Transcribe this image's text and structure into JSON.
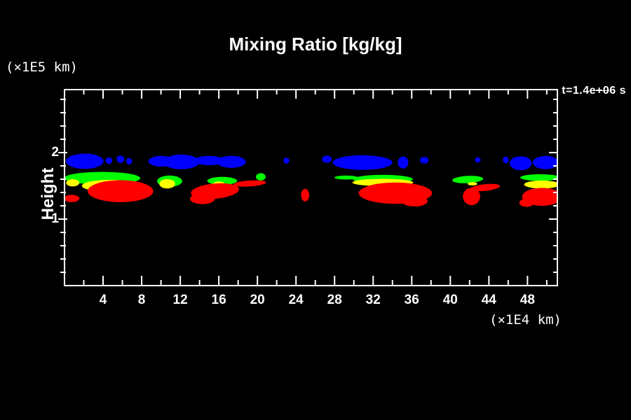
{
  "title": "Mixing Ratio [kg/kg]",
  "timestamp": {
    "prefix": "t=1.4",
    "struck": "e+0",
    "suffix": "6 s"
  },
  "y_axis": {
    "label": "Height",
    "unit_label": "(×1E5 km)",
    "range": [
      0,
      2.947
    ],
    "major_ticks": [
      1,
      2
    ],
    "major_tick_labels": [
      "1",
      "2"
    ],
    "minor_ticks": [
      0.2,
      0.4,
      0.6,
      0.8,
      1.2,
      1.4,
      1.6,
      1.8,
      2.2,
      2.4,
      2.6,
      2.8
    ]
  },
  "x_axis": {
    "unit_label": "(×1E4 km)",
    "range": [
      0,
      51.1
    ],
    "major_ticks": [
      4,
      8,
      12,
      16,
      20,
      24,
      28,
      32,
      36,
      40,
      44,
      48
    ],
    "major_tick_labels": [
      "4",
      "8",
      "12",
      "16",
      "20",
      "24",
      "28",
      "32",
      "36",
      "40",
      "44",
      "48"
    ],
    "minor_ticks": [
      2,
      6,
      10,
      14,
      18,
      22,
      26,
      30,
      34,
      38,
      42,
      46,
      50
    ]
  },
  "colors": {
    "background": "#000000",
    "frame": "#ffffff",
    "text": "#ffffff"
  },
  "chart_data": {
    "type": "filled_contour",
    "title": "Mixing Ratio [kg/kg]",
    "xlabel_unit": "(×1E4 km)",
    "ylabel": "Height",
    "ylabel_unit": "(×1E5 km)",
    "time_annotation": "t=1.4e+06 s",
    "x_range": [
      0,
      51.1
    ],
    "y_range": [
      0,
      2.947
    ],
    "region_format": "[cx, cy, rx, ry, rotation_deg?] in axis units",
    "levels": [
      {
        "name": "level-1-blue",
        "color": "#0000ff",
        "regions": [
          [
            2.1,
            1.87,
            1.95,
            0.115
          ],
          [
            4.6,
            1.88,
            0.35,
            0.05
          ],
          [
            5.8,
            1.9,
            0.4,
            0.055
          ],
          [
            6.7,
            1.87,
            0.3,
            0.05
          ],
          [
            10.0,
            1.87,
            1.3,
            0.08
          ],
          [
            12.1,
            1.86,
            1.9,
            0.11
          ],
          [
            15.0,
            1.88,
            1.5,
            0.07
          ],
          [
            17.3,
            1.86,
            1.5,
            0.09
          ],
          [
            23.0,
            1.88,
            0.3,
            0.045
          ],
          [
            27.2,
            1.9,
            0.5,
            0.055
          ],
          [
            30.9,
            1.85,
            3.1,
            0.11
          ],
          [
            35.1,
            1.85,
            0.55,
            0.09
          ],
          [
            37.3,
            1.885,
            0.45,
            0.05
          ],
          [
            42.85,
            1.89,
            0.3,
            0.04
          ],
          [
            45.75,
            1.89,
            0.3,
            0.05
          ],
          [
            47.3,
            1.84,
            1.15,
            0.105
          ],
          [
            49.9,
            1.85,
            1.35,
            0.1
          ]
        ]
      },
      {
        "name": "level-2-green",
        "color": "#00ff00",
        "regions": [
          [
            3.9,
            1.615,
            3.95,
            0.095
          ],
          [
            10.9,
            1.57,
            1.3,
            0.085
          ],
          [
            16.35,
            1.575,
            1.55,
            0.06
          ],
          [
            20.35,
            1.635,
            0.5,
            0.055
          ],
          [
            29.2,
            1.625,
            1.2,
            0.03
          ],
          [
            33.0,
            1.6,
            3.1,
            0.065
          ],
          [
            41.8,
            1.595,
            1.6,
            0.055,
            -3
          ],
          [
            49.3,
            1.625,
            2.05,
            0.05
          ]
        ]
      },
      {
        "name": "level-3-yellow",
        "color": "#ffff00",
        "regions": [
          [
            0.85,
            1.545,
            0.68,
            0.055
          ],
          [
            4.7,
            1.5,
            2.9,
            0.09
          ],
          [
            10.65,
            1.53,
            0.82,
            0.07
          ],
          [
            16.0,
            1.525,
            0.62,
            0.04
          ],
          [
            33.0,
            1.55,
            3.15,
            0.055
          ],
          [
            42.3,
            1.53,
            0.5,
            0.025
          ],
          [
            49.5,
            1.52,
            1.85,
            0.06
          ]
        ]
      },
      {
        "name": "level-4-red",
        "color": "#ff0000",
        "regions": [
          [
            0.75,
            1.31,
            0.8,
            0.055
          ],
          [
            5.8,
            1.42,
            3.4,
            0.165
          ],
          [
            15.6,
            1.42,
            2.5,
            0.115,
            -5
          ],
          [
            14.3,
            1.305,
            1.3,
            0.08
          ],
          [
            19.2,
            1.535,
            1.7,
            0.045,
            -4
          ],
          [
            24.95,
            1.36,
            0.42,
            0.095
          ],
          [
            34.3,
            1.39,
            3.8,
            0.16
          ],
          [
            36.3,
            1.27,
            1.35,
            0.08
          ],
          [
            42.2,
            1.34,
            0.9,
            0.13
          ],
          [
            43.6,
            1.475,
            1.55,
            0.05,
            -6
          ],
          [
            49.5,
            1.335,
            2.05,
            0.135
          ],
          [
            47.9,
            1.245,
            0.75,
            0.06
          ],
          [
            51.0,
            1.29,
            0.22,
            0.04
          ]
        ]
      }
    ]
  }
}
